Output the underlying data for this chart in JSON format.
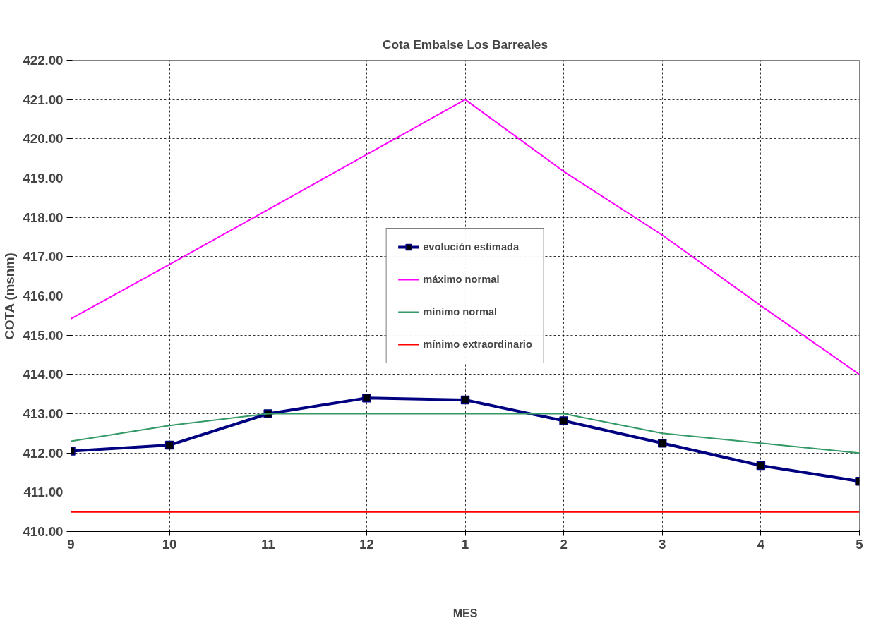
{
  "chart_data": {
    "type": "line",
    "title": "Cota Embalse Los Barreales",
    "xlabel": "MES",
    "ylabel": "COTA (msnm)",
    "categories": [
      "9",
      "10",
      "11",
      "12",
      "1",
      "2",
      "3",
      "4",
      "5"
    ],
    "series": [
      {
        "name": "evolución estimada",
        "color": "#000080",
        "marker": "square",
        "values": [
          412.05,
          412.2,
          413.0,
          413.4,
          413.35,
          412.82,
          412.25,
          411.68,
          411.28
        ]
      },
      {
        "name": "máximo normal",
        "color": "#ff00ff",
        "marker": "none",
        "values": [
          415.42,
          416.8,
          418.2,
          419.6,
          421.0,
          419.17,
          417.55,
          415.75,
          414.0
        ]
      },
      {
        "name": "mínimo normal",
        "color": "#339966",
        "marker": "none",
        "values": [
          412.3,
          412.7,
          413.0,
          413.0,
          413.0,
          413.0,
          412.5,
          412.25,
          412.0
        ]
      },
      {
        "name": "mínimo extraordinario",
        "color": "#ff0000",
        "marker": "none",
        "values": [
          410.5,
          410.5,
          410.5,
          410.5,
          410.5,
          410.5,
          410.5,
          410.5,
          410.5
        ]
      }
    ],
    "ylim": [
      410,
      422
    ],
    "yticks": [
      {
        "value": 410,
        "label": "410.00"
      },
      {
        "value": 411,
        "label": "411.00"
      },
      {
        "value": 412,
        "label": "412.00"
      },
      {
        "value": 413,
        "label": "413.00"
      },
      {
        "value": 414,
        "label": "414.00"
      },
      {
        "value": 415,
        "label": "415.00"
      },
      {
        "value": 416,
        "label": "416.00"
      },
      {
        "value": 417,
        "label": "417.00"
      },
      {
        "value": 418,
        "label": "418.00"
      },
      {
        "value": 419,
        "label": "419.00"
      },
      {
        "value": 420,
        "label": "420.00"
      },
      {
        "value": 421,
        "label": "421.00"
      },
      {
        "value": 422,
        "label": "422.00"
      }
    ],
    "grid": true,
    "legend": "center",
    "line_style": "solid"
  }
}
